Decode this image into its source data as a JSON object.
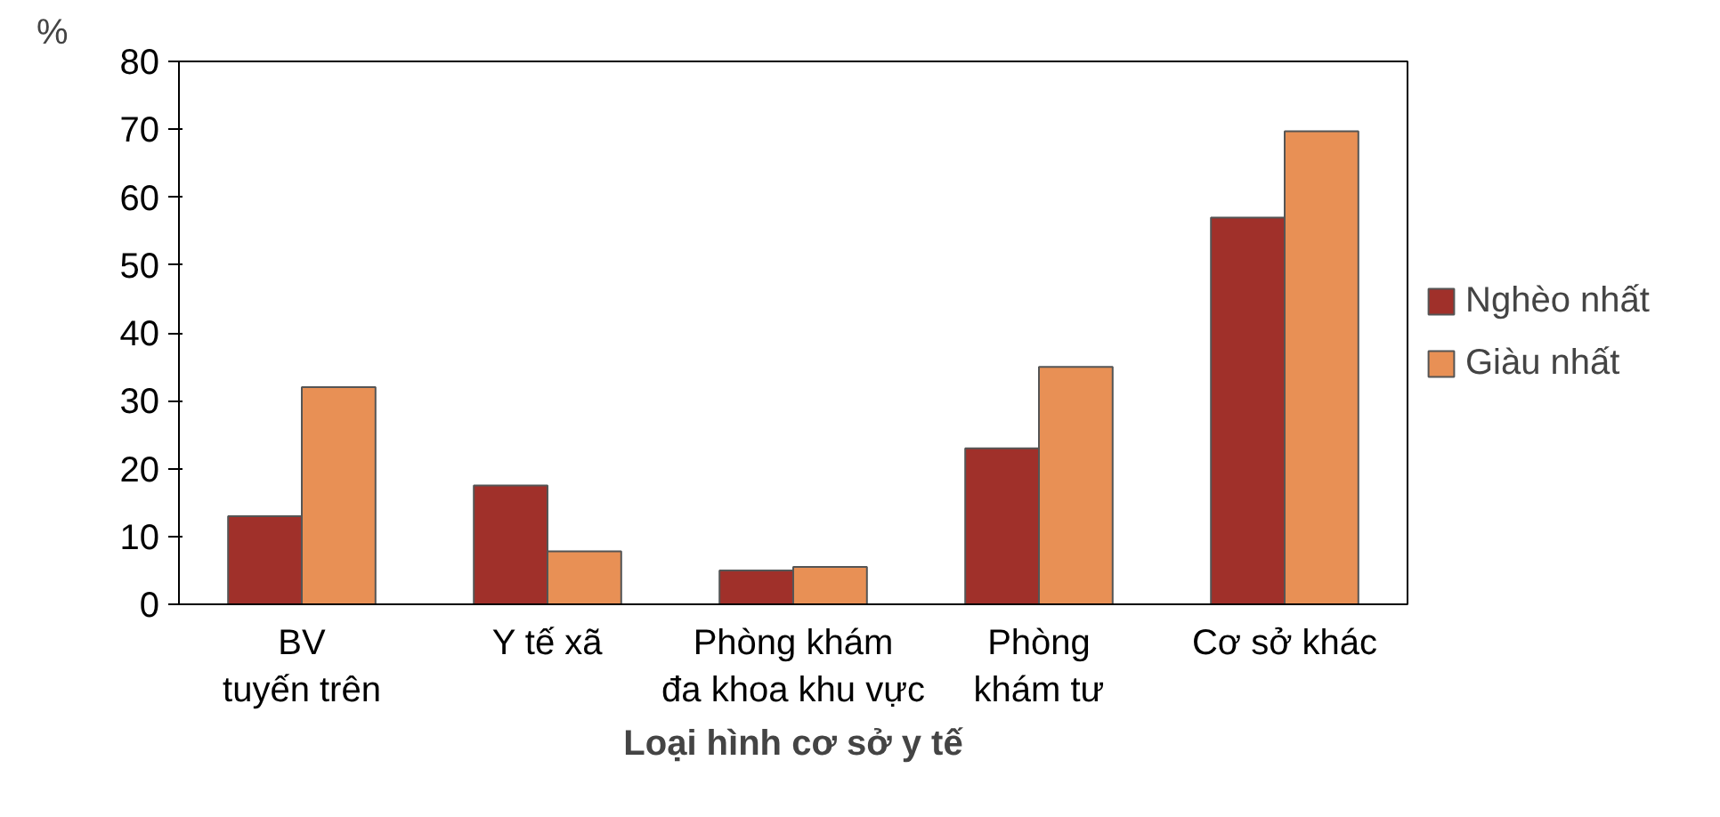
{
  "chart_data": {
    "type": "bar",
    "xlabel": "Loại hình cơ sở y tế",
    "ylabel": "%",
    "categories": [
      "BV\ntuyến trên",
      "Y tế xã",
      "Phòng khám\nđa khoa khu vực",
      "Phòng\nkhám tư",
      "Cơ sở khác"
    ],
    "series": [
      {
        "name": "Nghèo nhất",
        "color": "#a0302a",
        "values": [
          13,
          17.5,
          5,
          23,
          57
        ]
      },
      {
        "name": "Giàu nhất",
        "color": "#e89055",
        "values": [
          32,
          7.8,
          5.5,
          35,
          69.7
        ]
      }
    ],
    "ylim": [
      0,
      80
    ],
    "yticks": [
      0,
      10,
      20,
      30,
      40,
      50,
      60,
      70,
      80
    ],
    "grid": false,
    "legend": "right"
  }
}
